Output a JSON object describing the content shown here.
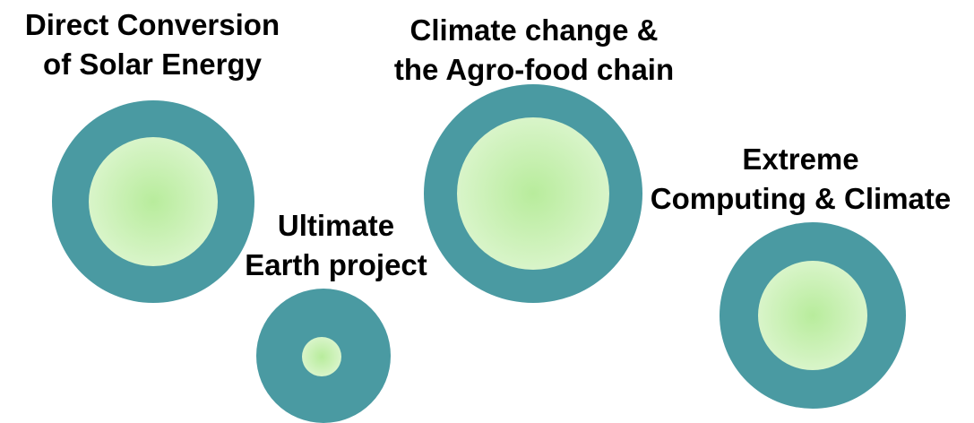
{
  "colors": {
    "ring": "#4a9aa2",
    "core_center": "#b8ec9c",
    "core_edge": "#e6f8dc",
    "text": "#000000"
  },
  "topics": {
    "solar": {
      "lines": [
        "Direct Conversion",
        "of Solar Energy"
      ]
    },
    "agro": {
      "lines": [
        "Climate change &",
        "the Agro-food chain"
      ]
    },
    "extreme": {
      "lines": [
        "Extreme",
        "Computing & Climate"
      ]
    },
    "earth": {
      "lines": [
        "Ultimate",
        "Earth project"
      ]
    }
  }
}
